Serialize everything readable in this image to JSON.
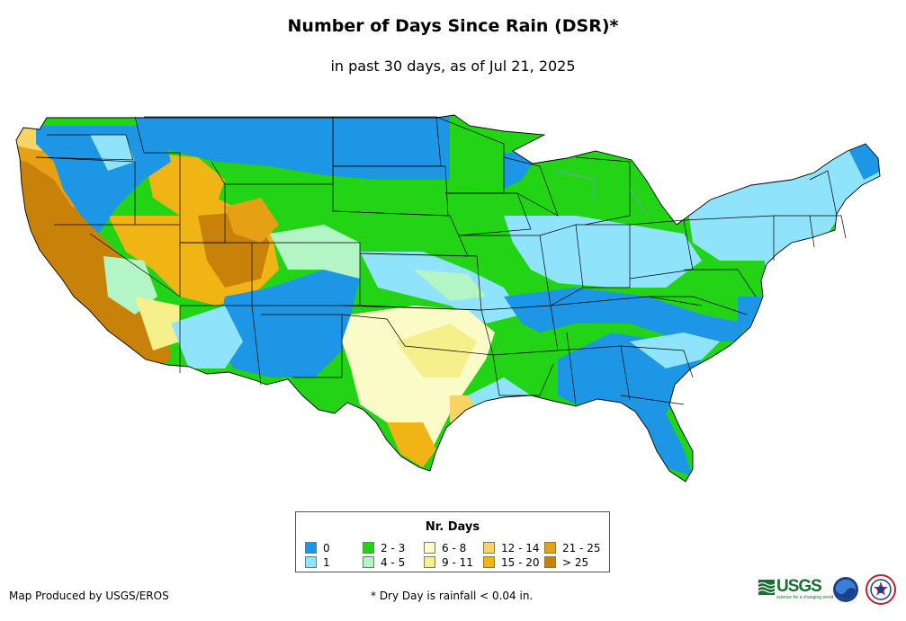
{
  "header": {
    "title": "Number of Days Since Rain (DSR)*",
    "subtitle": "in past 30 days, as of Jul 21, 2025"
  },
  "legend": {
    "title": "Nr. Days",
    "items": [
      {
        "label": "0",
        "color": "#1e96e6"
      },
      {
        "label": "1",
        "color": "#8fe3fb"
      },
      {
        "label": "2 - 3",
        "color": "#22d415"
      },
      {
        "label": "4 - 5",
        "color": "#b4f5c6"
      },
      {
        "label": "6 - 8",
        "color": "#fbfbc8"
      },
      {
        "label": "9 - 11",
        "color": "#f6f08c"
      },
      {
        "label": "12 - 14",
        "color": "#f8d464"
      },
      {
        "label": "15 - 20",
        "color": "#f0b414"
      },
      {
        "label": "21 - 25",
        "color": "#e6a014"
      },
      {
        "label": "> 25",
        "color": "#c8820a"
      }
    ]
  },
  "footer": {
    "credit": "Map Produced by USGS/EROS",
    "footnote": "* Dry Day is rainfall < 0.04 in.",
    "usgs_logo_text": "USGS",
    "usgs_tagline": "science for a changing world",
    "noaa_logo": "noaa-logo",
    "nws_logo": "nws-logo"
  }
}
